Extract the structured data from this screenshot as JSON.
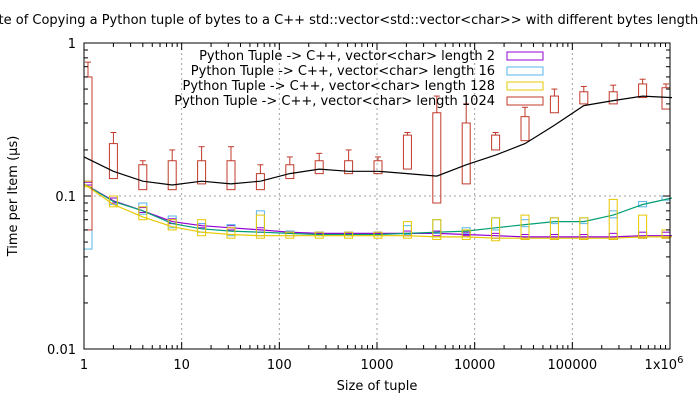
{
  "chart_data": {
    "type": "line",
    "title": "Rate of Copying a Python tuple of bytes to a C++ std::vector<std::vector<char>> with different bytes length",
    "xlabel": "Size of tuple",
    "ylabel": "Time per Item (µs)",
    "x_scale": "log",
    "y_scale": "log",
    "xlim": [
      1,
      1000000
    ],
    "ylim": [
      0.01,
      1
    ],
    "x_ticks": [
      {
        "value": 1,
        "label": "1"
      },
      {
        "value": 10,
        "label": "10"
      },
      {
        "value": 100,
        "label": "100"
      },
      {
        "value": 1000,
        "label": "1000"
      },
      {
        "value": 10000,
        "label": "10000"
      },
      {
        "value": 100000,
        "label": "100000"
      }
    ],
    "x_tick_last": {
      "mantissa": "1x10",
      "exponent": "6"
    },
    "y_ticks": [
      {
        "value": 1,
        "label": "1"
      },
      {
        "value": 0.1,
        "label": "0.1"
      },
      {
        "value": 0.01,
        "label": "0.01"
      }
    ],
    "grid": true,
    "legend_position": "top-right",
    "x": [
      1,
      2,
      4,
      8,
      16,
      32,
      64,
      128,
      256,
      512,
      1024,
      2048,
      4096,
      8192,
      16384,
      32768,
      65536,
      131072,
      262144,
      524288,
      1048576
    ],
    "series": [
      {
        "name": "Python Tuple -> C++, vector<char> length 2",
        "color": "#9400d3",
        "values": [
          0.12,
          0.093,
          0.08,
          0.068,
          0.064,
          0.062,
          0.06,
          0.058,
          0.057,
          0.057,
          0.057,
          0.057,
          0.057,
          0.056,
          0.055,
          0.054,
          0.054,
          0.054,
          0.054,
          0.055,
          0.055
        ],
        "boxes": [
          [
            0.118,
            0.123
          ],
          [
            0.09,
            0.097
          ],
          [
            0.078,
            0.084
          ],
          [
            0.066,
            0.071
          ],
          [
            0.062,
            0.066
          ],
          [
            0.06,
            0.064
          ],
          [
            0.058,
            0.062
          ],
          [
            0.057,
            0.059
          ],
          [
            0.056,
            0.058
          ],
          [
            0.056,
            0.058
          ],
          [
            0.056,
            0.058
          ],
          [
            0.055,
            0.059
          ],
          [
            0.055,
            0.059
          ],
          [
            0.055,
            0.058
          ],
          [
            0.053,
            0.057
          ],
          [
            0.052,
            0.056
          ],
          [
            0.052,
            0.056
          ],
          [
            0.052,
            0.056
          ],
          [
            0.052,
            0.057
          ],
          [
            0.053,
            0.058
          ],
          [
            0.053,
            0.058
          ]
        ]
      },
      {
        "name": "Python Tuple -> C++, vector<char> length 16",
        "color": "#009e73",
        "box_color": "#56b4e9",
        "values": [
          0.12,
          0.092,
          0.08,
          0.066,
          0.061,
          0.059,
          0.058,
          0.057,
          0.056,
          0.056,
          0.056,
          0.057,
          0.058,
          0.059,
          0.062,
          0.065,
          0.068,
          0.068,
          0.075,
          0.088,
          0.097
        ],
        "boxes": [
          [
            0.045,
            0.125
          ],
          [
            0.088,
            0.1
          ],
          [
            0.076,
            0.09
          ],
          [
            0.062,
            0.074
          ],
          [
            0.058,
            0.066
          ],
          [
            0.055,
            0.065
          ],
          [
            0.055,
            0.08
          ],
          [
            0.055,
            0.059
          ],
          [
            0.055,
            0.058
          ],
          [
            0.055,
            0.058
          ],
          [
            0.055,
            0.058
          ],
          [
            0.056,
            0.064
          ],
          [
            0.057,
            0.07
          ],
          [
            0.057,
            0.062
          ],
          [
            0.06,
            0.072
          ],
          [
            0.063,
            0.07
          ],
          [
            0.066,
            0.072
          ],
          [
            0.066,
            0.072
          ],
          [
            0.072,
            0.08
          ],
          [
            0.085,
            0.092
          ],
          [
            0.094,
            0.1
          ]
        ]
      },
      {
        "name": "Python Tuple -> C++, vector<char> length 128",
        "color": "#e6c800",
        "values": [
          0.12,
          0.088,
          0.073,
          0.063,
          0.058,
          0.056,
          0.055,
          0.055,
          0.055,
          0.055,
          0.055,
          0.055,
          0.054,
          0.054,
          0.053,
          0.053,
          0.053,
          0.053,
          0.053,
          0.054,
          0.054
        ],
        "boxes": [
          [
            0.115,
            0.125
          ],
          [
            0.085,
            0.1
          ],
          [
            0.07,
            0.085
          ],
          [
            0.06,
            0.07
          ],
          [
            0.055,
            0.07
          ],
          [
            0.053,
            0.062
          ],
          [
            0.053,
            0.075
          ],
          [
            0.053,
            0.058
          ],
          [
            0.053,
            0.058
          ],
          [
            0.053,
            0.058
          ],
          [
            0.053,
            0.058
          ],
          [
            0.053,
            0.068
          ],
          [
            0.052,
            0.07
          ],
          [
            0.052,
            0.06
          ],
          [
            0.051,
            0.072
          ],
          [
            0.052,
            0.075
          ],
          [
            0.052,
            0.072
          ],
          [
            0.052,
            0.072
          ],
          [
            0.052,
            0.095
          ],
          [
            0.053,
            0.075
          ],
          [
            0.053,
            0.06
          ]
        ]
      },
      {
        "name": "Python Tuple -> C++, vector<char> length 1024",
        "color": "#000000",
        "box_color": "#c0392b",
        "values": [
          0.18,
          0.145,
          0.125,
          0.118,
          0.125,
          0.12,
          0.125,
          0.14,
          0.15,
          0.145,
          0.145,
          0.14,
          0.135,
          0.16,
          0.185,
          0.22,
          0.29,
          0.39,
          0.42,
          0.45,
          0.44
        ],
        "boxes": [
          [
            0.06,
            0.6
          ],
          [
            0.13,
            0.22
          ],
          [
            0.11,
            0.16
          ],
          [
            0.11,
            0.17
          ],
          [
            0.12,
            0.17
          ],
          [
            0.11,
            0.17
          ],
          [
            0.11,
            0.14
          ],
          [
            0.13,
            0.16
          ],
          [
            0.14,
            0.17
          ],
          [
            0.14,
            0.17
          ],
          [
            0.14,
            0.17
          ],
          [
            0.15,
            0.25
          ],
          [
            0.09,
            0.35
          ],
          [
            0.12,
            0.3
          ],
          [
            0.2,
            0.25
          ],
          [
            0.23,
            0.33
          ],
          [
            0.35,
            0.45
          ],
          [
            0.4,
            0.48
          ],
          [
            0.4,
            0.48
          ],
          [
            0.44,
            0.54
          ],
          [
            0.37,
            0.51
          ]
        ],
        "whisker_tops": [
          0.75,
          0.26,
          0.17,
          0.2,
          0.21,
          0.21,
          0.16,
          0.18,
          0.19,
          0.2,
          0.18,
          0.26,
          0.45,
          0.4,
          0.26,
          0.38,
          0.5,
          0.52,
          0.53,
          0.58,
          0.54
        ]
      }
    ]
  }
}
